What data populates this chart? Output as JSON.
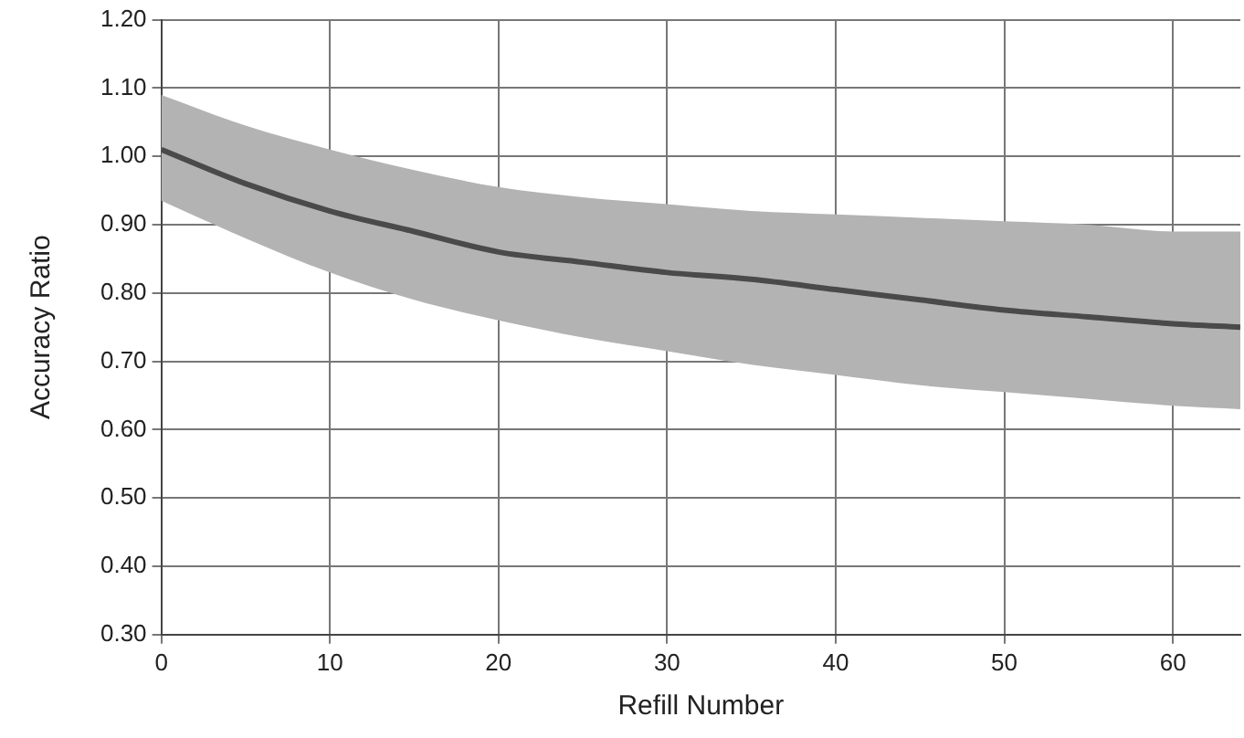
{
  "chart_data": {
    "type": "line",
    "xlabel": "Refill Number",
    "ylabel": "Accuracy Ratio",
    "x": [
      0,
      5,
      10,
      15,
      20,
      25,
      30,
      35,
      40,
      45,
      50,
      55,
      60,
      64
    ],
    "series": [
      {
        "color": "#4a4a4a",
        "values": [
          1.01,
          0.96,
          0.92,
          0.89,
          0.86,
          0.845,
          0.83,
          0.82,
          0.805,
          0.79,
          0.775,
          0.765,
          0.755,
          0.75
        ],
        "upper": [
          1.09,
          1.045,
          1.01,
          0.98,
          0.955,
          0.94,
          0.93,
          0.92,
          0.915,
          0.91,
          0.905,
          0.9,
          0.89,
          0.89
        ],
        "lower": [
          0.935,
          0.88,
          0.83,
          0.79,
          0.76,
          0.735,
          0.715,
          0.695,
          0.68,
          0.665,
          0.655,
          0.645,
          0.635,
          0.63
        ]
      }
    ],
    "xlim": [
      0,
      64
    ],
    "xticks": [
      0,
      10,
      20,
      30,
      40,
      50,
      60
    ],
    "ylim": [
      0.3,
      1.2
    ],
    "yticks": [
      {
        "value": 0.3,
        "label": "0.30"
      },
      {
        "value": 0.4,
        "label": "0.40"
      },
      {
        "value": 0.5,
        "label": "0.50"
      },
      {
        "value": 0.6,
        "label": "0.60"
      },
      {
        "value": 0.7,
        "label": "0.70"
      },
      {
        "value": 0.8,
        "label": "0.80"
      },
      {
        "value": 0.9,
        "label": "0.90"
      },
      {
        "value": 1.0,
        "label": "1.00"
      },
      {
        "value": 1.1,
        "label": "1.10"
      },
      {
        "value": 1.2,
        "label": "1.20"
      }
    ],
    "grid": true,
    "marker": "none",
    "line_style": "solid"
  }
}
